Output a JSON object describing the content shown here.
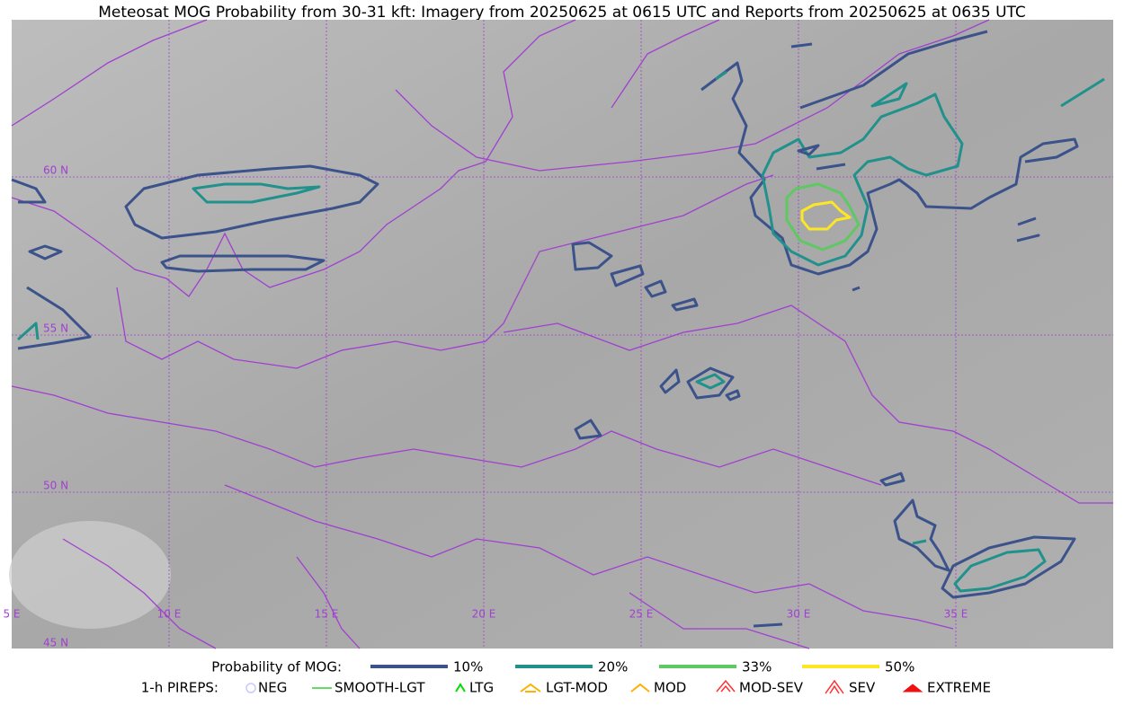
{
  "title": "Meteosat MOG Probability from 30-31 kft: Imagery from 20250625 at 0615 UTC and Reports from 20250625 at 0635 UTC",
  "map": {
    "lat_labels": [
      "60 N",
      "55 N",
      "50 N",
      "45 N"
    ],
    "lon_labels": [
      "5 E",
      "10 E",
      "15 E",
      "20 E",
      "25 E",
      "30 E",
      "35 E"
    ]
  },
  "legend": {
    "mog_label": "Probability of MOG:",
    "mog_levels": [
      {
        "label": "10%",
        "color": "#3b528b"
      },
      {
        "label": "20%",
        "color": "#21918c"
      },
      {
        "label": "33%",
        "color": "#5ec962"
      },
      {
        "label": "50%",
        "color": "#fde725"
      }
    ],
    "pirep_label": "1-h PIREPS:",
    "pireps": [
      {
        "label": "NEG",
        "color": "#c8c8ff"
      },
      {
        "label": "SMOOTH-LGT",
        "color": "#32cd32"
      },
      {
        "label": "LTG",
        "color": "#00dd00"
      },
      {
        "label": "LGT-MOD",
        "color": "#ffb000"
      },
      {
        "label": "MOD",
        "color": "#ffb000"
      },
      {
        "label": "MOD-SEV",
        "color": "#ff3030"
      },
      {
        "label": "SEV",
        "color": "#ff3030"
      },
      {
        "label": "EXTREME",
        "color": "#ee1111"
      }
    ]
  }
}
